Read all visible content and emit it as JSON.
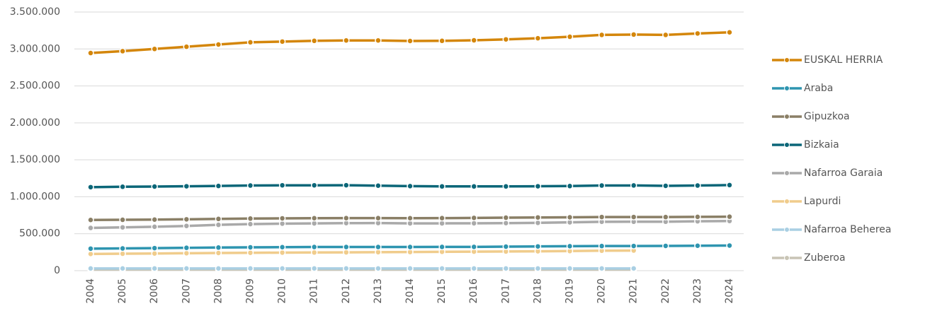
{
  "chart_data": {
    "type": "line",
    "categories": [
      "2004",
      "2005",
      "2006",
      "2007",
      "2008",
      "2009",
      "2010",
      "2011",
      "2012",
      "2013",
      "2014",
      "2015",
      "2016",
      "2017",
      "2018",
      "2019",
      "2020",
      "2021",
      "2022",
      "2023",
      "2024"
    ],
    "series": [
      {
        "name": "EUSKAL HERRIA",
        "color": "#d4860b",
        "values": [
          2945000,
          2970000,
          3000000,
          3030000,
          3060000,
          3090000,
          3100000,
          3110000,
          3115000,
          3115000,
          3108000,
          3110000,
          3117000,
          3130000,
          3145000,
          3165000,
          3190000,
          3195000,
          3190000,
          3210000,
          3225000
        ]
      },
      {
        "name": "Araba",
        "color": "#2e95b0",
        "values": [
          298000,
          301000,
          305000,
          309000,
          313000,
          316000,
          318000,
          320000,
          320000,
          320000,
          320000,
          321000,
          322000,
          325000,
          328000,
          331000,
          333000,
          334000,
          335000,
          337000,
          340000
        ]
      },
      {
        "name": "Gipuzkoa",
        "color": "#8a7f66",
        "values": [
          686000,
          688000,
          691000,
          695000,
          700000,
          705000,
          708000,
          710000,
          711000,
          711000,
          710000,
          711000,
          714000,
          717000,
          720000,
          722000,
          726000,
          726000,
          725000,
          728000,
          730000
        ]
      },
      {
        "name": "Bizkaia",
        "color": "#0b6678",
        "values": [
          1130000,
          1135000,
          1138000,
          1142000,
          1146000,
          1152000,
          1155000,
          1155000,
          1156000,
          1150000,
          1144000,
          1140000,
          1140000,
          1140000,
          1142000,
          1145000,
          1152000,
          1153000,
          1148000,
          1152000,
          1158000
        ]
      },
      {
        "name": "Nafarroa Garaia",
        "color": "#a9a9a9",
        "values": [
          578000,
          586000,
          594000,
          605000,
          620000,
          630000,
          636000,
          640000,
          643000,
          644000,
          640000,
          640000,
          641000,
          643000,
          647000,
          654000,
          661000,
          662000,
          662000,
          668000,
          672000
        ]
      },
      {
        "name": "Lapurdi",
        "color": "#f0cc8c",
        "values": [
          226000,
          229000,
          232000,
          236000,
          239000,
          242000,
          244000,
          246000,
          248000,
          250000,
          252000,
          255000,
          257000,
          259000,
          262000,
          265000,
          270000,
          272000,
          null,
          null,
          null
        ]
      },
      {
        "name": "Nafarroa Beherea",
        "color": "#a9cfe3",
        "values": [
          30000,
          30000,
          30000,
          30000,
          30000,
          30000,
          30000,
          30000,
          30000,
          30000,
          30000,
          30000,
          30000,
          30000,
          30000,
          30000,
          30000,
          30000,
          null,
          null,
          null
        ]
      },
      {
        "name": "Zuberoa",
        "color": "#c8c4b5",
        "values": [
          15000,
          15000,
          15000,
          15000,
          15000,
          15000,
          15000,
          15000,
          15000,
          15000,
          15000,
          15000,
          15000,
          15000,
          15000,
          15000,
          15000,
          15000,
          null,
          null,
          null
        ]
      }
    ],
    "ylim": [
      0,
      3500000
    ],
    "yticks": [
      0,
      {
        "value": 500000,
        "label": "500.000"
      },
      {
        "value": 1000000,
        "label": "1.000.000"
      },
      {
        "value": 1500000,
        "label": "1.500.000"
      },
      {
        "value": 2000000,
        "label": "2.000.000"
      },
      {
        "value": 2500000,
        "label": "2.500.000"
      },
      {
        "value": 3000000,
        "label": "3.000.000"
      },
      {
        "value": 3500000,
        "label": "3.500.000"
      }
    ],
    "grid": true,
    "legend": "right"
  }
}
